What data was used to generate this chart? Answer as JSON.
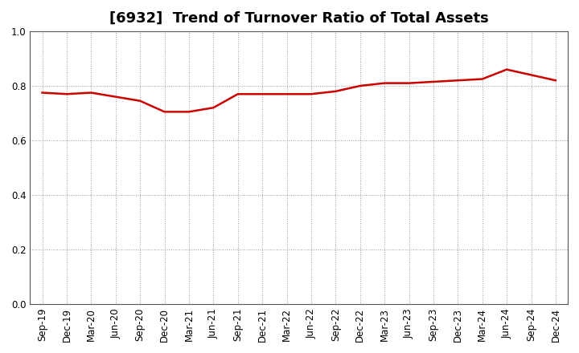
{
  "title": "[6932]  Trend of Turnover Ratio of Total Assets",
  "x_labels": [
    "Sep-19",
    "Dec-19",
    "Mar-20",
    "Jun-20",
    "Sep-20",
    "Dec-20",
    "Mar-21",
    "Jun-21",
    "Sep-21",
    "Dec-21",
    "Mar-22",
    "Jun-22",
    "Sep-22",
    "Dec-22",
    "Mar-23",
    "Jun-23",
    "Sep-23",
    "Dec-23",
    "Mar-24",
    "Jun-24",
    "Sep-24",
    "Dec-24"
  ],
  "y_values": [
    0.775,
    0.77,
    0.775,
    0.76,
    0.745,
    0.705,
    0.705,
    0.72,
    0.77,
    0.77,
    0.77,
    0.77,
    0.78,
    0.8,
    0.81,
    0.81,
    0.815,
    0.82,
    0.825,
    0.86,
    0.84,
    0.82
  ],
  "line_color": "#cc0000",
  "line_width": 1.8,
  "ylim": [
    0.0,
    1.0
  ],
  "yticks": [
    0.0,
    0.2,
    0.4,
    0.6,
    0.8,
    1.0
  ],
  "background_color": "#ffffff",
  "grid_color": "#999999",
  "title_fontsize": 13,
  "tick_fontsize": 8.5,
  "spine_color": "#555555"
}
